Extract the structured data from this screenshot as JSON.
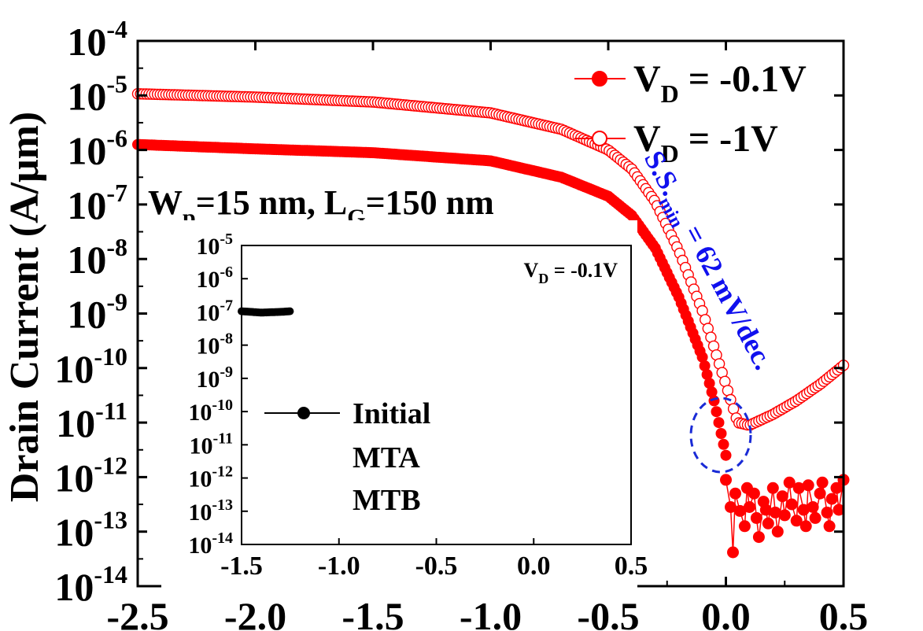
{
  "chart_data": [
    {
      "type": "scatter",
      "scale": "log-y",
      "ylabel": "Drain Current (A/μm)",
      "xlabel": "",
      "xlim": [
        -2.5,
        0.5
      ],
      "ylim_exponent": [
        -14,
        -4
      ],
      "x_ticks": [
        "-2.5",
        "-2.0",
        "-1.5",
        "-1.0",
        "-0.5",
        "0.0",
        "0.5"
      ],
      "x_tick_values": [
        -2.5,
        -2.0,
        -1.5,
        -1.0,
        -0.5,
        0.0,
        0.5
      ],
      "y_tick_exponents": [
        -4,
        -5,
        -6,
        -7,
        -8,
        -9,
        -10,
        -11,
        -12,
        -13,
        -14
      ],
      "y_tick_base": "10",
      "legend_position": "top-right",
      "annotation_device": {
        "w_main": "W",
        "w_sub": "p",
        "w_rest": "=15 nm, L",
        "l_sub": "G",
        "l_rest": "=150 nm"
      },
      "annotation_ss": {
        "prefix": "S.S.",
        "sub": "min",
        "suffix": " = 62 mV/dec."
      },
      "series": [
        {
          "name_main": "V",
          "name_sub": "D",
          "name_rest": " = -0.1V",
          "marker": "filled",
          "color": "#ff0000",
          "knots": [
            [
              -2.5,
              -5.9
            ],
            [
              -2.0,
              -5.98
            ],
            [
              -1.5,
              -6.05
            ],
            [
              -1.0,
              -6.2
            ],
            [
              -0.7,
              -6.5
            ],
            [
              -0.5,
              -6.85
            ],
            [
              -0.4,
              -7.2
            ],
            [
              -0.3,
              -7.8
            ],
            [
              -0.2,
              -8.7
            ],
            [
              -0.1,
              -9.8
            ],
            [
              -0.05,
              -10.6
            ],
            [
              0.0,
              -11.6
            ]
          ],
          "noise": [
            [
              0.0,
              -12.05
            ],
            [
              0.02,
              -12.55
            ],
            [
              0.03,
              -13.38
            ],
            [
              0.04,
              -12.3
            ],
            [
              0.06,
              -12.62
            ],
            [
              0.08,
              -12.9
            ],
            [
              0.09,
              -12.2
            ],
            [
              0.1,
              -12.55
            ],
            [
              0.12,
              -12.3
            ],
            [
              0.13,
              -12.75
            ],
            [
              0.14,
              -13.1
            ],
            [
              0.16,
              -12.45
            ],
            [
              0.17,
              -12.6
            ],
            [
              0.18,
              -12.85
            ],
            [
              0.2,
              -12.2
            ],
            [
              0.21,
              -12.65
            ],
            [
              0.22,
              -13.0
            ],
            [
              0.24,
              -12.35
            ],
            [
              0.25,
              -12.7
            ],
            [
              0.27,
              -12.1
            ],
            [
              0.28,
              -12.5
            ],
            [
              0.3,
              -12.8
            ],
            [
              0.31,
              -12.2
            ],
            [
              0.33,
              -12.6
            ],
            [
              0.34,
              -12.9
            ],
            [
              0.35,
              -12.15
            ],
            [
              0.37,
              -12.55
            ],
            [
              0.38,
              -12.75
            ],
            [
              0.4,
              -12.3
            ],
            [
              0.41,
              -12.1
            ],
            [
              0.43,
              -12.65
            ],
            [
              0.44,
              -12.9
            ],
            [
              0.45,
              -12.4
            ],
            [
              0.47,
              -12.2
            ],
            [
              0.48,
              -12.6
            ],
            [
              0.5,
              -12.05
            ]
          ]
        },
        {
          "name_main": "V",
          "name_sub": "D",
          "name_rest": " = -1V",
          "marker": "open",
          "color": "#ff0000",
          "knots": [
            [
              -2.5,
              -4.97
            ],
            [
              -2.0,
              -5.03
            ],
            [
              -1.5,
              -5.12
            ],
            [
              -1.0,
              -5.32
            ],
            [
              -0.7,
              -5.62
            ],
            [
              -0.5,
              -6.0
            ],
            [
              -0.4,
              -6.35
            ],
            [
              -0.3,
              -6.95
            ],
            [
              -0.2,
              -7.85
            ],
            [
              -0.1,
              -8.95
            ],
            [
              0.0,
              -10.3
            ],
            [
              0.05,
              -11.0
            ],
            [
              0.1,
              -11.05
            ],
            [
              0.2,
              -10.85
            ],
            [
              0.3,
              -10.6
            ],
            [
              0.4,
              -10.3
            ],
            [
              0.5,
              -9.95
            ]
          ]
        }
      ]
    },
    {
      "type": "scatter",
      "scale": "log-y",
      "inset": true,
      "xlim": [
        -1.5,
        0.5
      ],
      "ylim_exponent": [
        -14,
        -5
      ],
      "x_ticks": [
        "-1.5",
        "-1.0",
        "-0.5",
        "0.0",
        "0.5"
      ],
      "x_tick_values": [
        -1.5,
        -1.0,
        -0.5,
        0.0,
        0.5
      ],
      "y_tick_exponents": [
        -5,
        -6,
        -7,
        -8,
        -9,
        -10,
        -11,
        -12,
        -13,
        -14
      ],
      "y_tick_base": "10",
      "vd_label_main": "V",
      "vd_label_sub": "D",
      "vd_label_rest": " = -0.1V",
      "legend_entries": [
        "Initial",
        "MTA",
        "MTB"
      ],
      "series": [
        {
          "name": "Initial",
          "color": "#000000",
          "knots": [
            [
              -1.5,
              -6.98
            ],
            [
              -1.4,
              -7.02
            ],
            [
              -1.3,
              -7.0
            ],
            [
              -1.25,
              -6.98
            ]
          ]
        }
      ]
    }
  ]
}
